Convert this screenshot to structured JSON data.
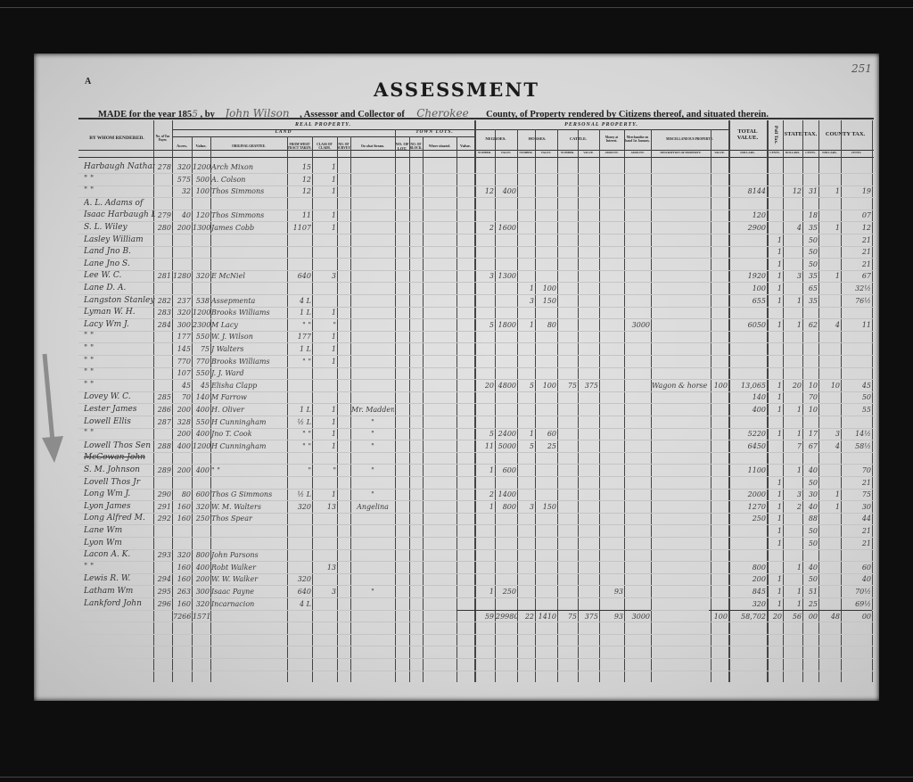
{
  "document": {
    "corner_letter": "A",
    "page_number": "251",
    "title": "ASSESSMENT",
    "made_for_prefix": "MADE for the year 185",
    "year_suffix": "5",
    "by_label": ", by",
    "assessor_name": "John Wilson",
    "assessor_label": ", Assessor and Collector of",
    "county_name": "Cherokee",
    "county_label": "County, of Property rendered by Citizens thereof, and situated therein."
  },
  "header": {
    "groups": {
      "real_property": "REAL PROPERTY.",
      "land": "LAND",
      "town_lots": "TOWN LOTS.",
      "personal_property": "PERSONAL PROPERTY."
    },
    "columns": [
      {
        "key": "name",
        "label": "BY WHOM RENDERED."
      },
      {
        "key": "tax",
        "label": "No. of Tax Payer."
      },
      {
        "key": "acres",
        "label": "Acres."
      },
      {
        "key": "lvalue",
        "label": "Value."
      },
      {
        "key": "grantee",
        "label": "ORIGINAL GRANTEE."
      },
      {
        "key": "tract",
        "label": "FROM WHAT TRACT TAKEN."
      },
      {
        "key": "claim",
        "label": "CLASS OF CLAIM."
      },
      {
        "key": "survey",
        "label": "NO. OF SURVEY"
      },
      {
        "key": "stream",
        "label": "On what Stream."
      },
      {
        "key": "lot",
        "label": "NO. OF LOT."
      },
      {
        "key": "block",
        "label": "NO. OF BLOCK."
      },
      {
        "key": "situated",
        "label": "Where situated."
      },
      {
        "key": "tvalue",
        "label": "Value."
      },
      {
        "key": "negroes",
        "label": "NEGROES.",
        "sub": [
          "NUMBER.",
          "VALUE."
        ]
      },
      {
        "key": "horses",
        "label": "HORSES.",
        "sub": [
          "NUMBER.",
          "VALUE."
        ]
      },
      {
        "key": "cattle",
        "label": "CATTLE.",
        "sub": [
          "NUMBER.",
          "VALUE."
        ]
      },
      {
        "key": "money",
        "label": "Money at Interest.",
        "sub": [
          "AMOUNT."
        ]
      },
      {
        "key": "merch",
        "label": "Merchandise on hand 1st January.",
        "sub": [
          "AMOUNT."
        ]
      },
      {
        "key": "misc",
        "label": "MISCELLANEOUS PROPERTY.",
        "sub": [
          "DESCRIPTION OF PROPERTY.",
          "VALUE."
        ]
      },
      {
        "key": "total",
        "label": "TOTAL VALUE.",
        "sub": [
          "DOLLARS."
        ]
      },
      {
        "key": "poll",
        "label": "Poll Tax.",
        "sub": [
          "CENTS."
        ]
      },
      {
        "key": "state",
        "label": "STATE TAX.",
        "sub": [
          "DOLLARS.",
          "CENTS."
        ]
      },
      {
        "key": "county",
        "label": "COUNTY TAX.",
        "sub": [
          "DOLLARS.",
          "CENTS."
        ]
      }
    ]
  },
  "rows": [
    {
      "name": "Harbaugh Nathan",
      "tax": "278",
      "acres": "320",
      "lvalue": "1200",
      "grantee": "Arch Mixon",
      "tract": "15",
      "claim": "1"
    },
    {
      "name": "\"      \"",
      "acres": "575",
      "lvalue": "500",
      "grantee": "A. Colson",
      "tract": "12",
      "claim": "1"
    },
    {
      "name": "\"      \"",
      "acres": "32",
      "lvalue": "100",
      "grantee": "Thos Simmons",
      "tract": "12",
      "claim": "1",
      "neg_n": "12",
      "neg_v": "400",
      "total": "8144",
      "st_d": "12",
      "st_c": "31",
      "co_d": "1",
      "co_c": "19"
    },
    {
      "name": "A. L. Adams of"
    },
    {
      "name": "Isaac Harbaugh Ley",
      "tax": "279",
      "acres": "40",
      "lvalue": "120",
      "grantee": "Thos Simmons",
      "tract": "11",
      "claim": "1",
      "total": "120",
      "st_c": "18",
      "co_c": "07"
    },
    {
      "name": "S. L. Wiley",
      "tax": "280",
      "acres": "200",
      "lvalue": "1300",
      "grantee": "James Cobb",
      "tract": "1107",
      "claim": "1",
      "neg_n": "2",
      "neg_v": "1600",
      "total": "2900",
      "st_d": "4",
      "st_c": "35",
      "co_d": "1",
      "co_c": "12"
    },
    {
      "name": "Lasley William",
      "poll": "1",
      "st_c": "50",
      "co_c": "21"
    },
    {
      "name": "Land Jno B.",
      "poll": "1",
      "st_c": "50",
      "co_c": "21"
    },
    {
      "name": "Lane Jno S.",
      "poll": "1",
      "st_c": "50",
      "co_c": "21"
    },
    {
      "name": "Lee W. C.",
      "tax": "281",
      "acres": "1280",
      "lvalue": "320",
      "grantee": "E McNiel",
      "tract": "640",
      "claim": "3",
      "neg_n": "3",
      "neg_v": "1300",
      "total": "1920",
      "poll": "1",
      "st_d": "3",
      "st_c": "35",
      "co_d": "1",
      "co_c": "67"
    },
    {
      "name": "Lane D. A.",
      "hor_n": "1",
      "hor_v": "100",
      "total": "100",
      "poll": "1",
      "st_c": "65",
      "co_c": "32½"
    },
    {
      "name": "Langston Stanley",
      "tax": "282",
      "acres": "237",
      "lvalue": "538",
      "grantee": "Assepmenta",
      "tract": "4 L",
      "hor_n": "3",
      "hor_v": "150",
      "total": "655",
      "poll": "1",
      "st_d": "1",
      "st_c": "35",
      "co_c": "76½"
    },
    {
      "name": "Lyman W. H.",
      "tax": "283",
      "acres": "320",
      "lvalue": "1200",
      "grantee": "Brooks Williams",
      "tract": "1 L",
      "claim": "1"
    },
    {
      "name": "Lacy Wm J.",
      "tax": "284",
      "acres": "300",
      "lvalue": "2300",
      "grantee": "M Lacy",
      "tract": "\"  \"",
      "claim": "\"",
      "neg_n": "5",
      "neg_v": "1800",
      "hor_n": "1",
      "hor_v": "80",
      "merch": "3000",
      "total": "6050",
      "poll": "1",
      "st_d": "1",
      "st_c": "62",
      "co_d": "4",
      "co_c": "11"
    },
    {
      "name": "\"      \"",
      "acres": "177",
      "lvalue": "550",
      "grantee": "W. J. Wilson",
      "tract": "177",
      "claim": "1"
    },
    {
      "name": "\"      \"",
      "acres": "145",
      "lvalue": "75",
      "grantee": "J Walters",
      "tract": "1 L",
      "claim": "1"
    },
    {
      "name": "\"      \"",
      "acres": "770",
      "lvalue": "770",
      "grantee": "Brooks Williams",
      "tract": "\"  \"",
      "claim": "1"
    },
    {
      "name": "\"      \"",
      "acres": "107",
      "lvalue": "550",
      "grantee": "J. J. Ward"
    },
    {
      "name": "\"      \"",
      "acres": "45",
      "lvalue": "45",
      "grantee": "Elisha Clapp",
      "neg_n": "20",
      "neg_v": "4800",
      "hor_n": "5",
      "hor_v": "100",
      "cat_n": "75",
      "cat_v": "375",
      "misc_d": "Wagon & horse",
      "misc_v": "100",
      "total": "13,065",
      "poll": "1",
      "st_d": "20",
      "st_c": "10",
      "co_d": "10",
      "co_c": "45"
    },
    {
      "name": "Lovey W. C.",
      "tax": "285",
      "acres": "70",
      "lvalue": "140",
      "grantee": "M Farrow",
      "total": "140",
      "poll": "1",
      "st_c": "70",
      "co_c": "50"
    },
    {
      "name": "Lester James",
      "tax": "286",
      "acres": "200",
      "lvalue": "400",
      "grantee": "H. Oliver",
      "tract": "1 L",
      "claim": "1",
      "stream": "Mr. Madden",
      "total": "400",
      "poll": "1",
      "st_d": "1",
      "st_c": "10",
      "co_c": "55"
    },
    {
      "name": "Lowell Ellis",
      "tax": "287",
      "acres": "328",
      "lvalue": "550",
      "grantee": "H Cunningham",
      "tract": "½ L",
      "claim": "1",
      "stream": "\""
    },
    {
      "name": "\"      \"",
      "acres": "200",
      "lvalue": "400",
      "grantee": "Jno T. Cook",
      "tract": "\"  \"",
      "claim": "1",
      "stream": "\"",
      "neg_n": "5",
      "neg_v": "2400",
      "hor_n": "1",
      "hor_v": "60",
      "total": "5220",
      "poll": "1",
      "st_d": "1",
      "st_c": "17",
      "co_d": "3",
      "co_c": "14½"
    },
    {
      "name": "Lowell Thos Sen",
      "tax": "288",
      "acres": "400",
      "lvalue": "1200",
      "grantee": "H Cunningham",
      "tract": "\"  \"",
      "claim": "1",
      "stream": "\"",
      "neg_n": "11",
      "neg_v": "5000",
      "hor_n": "5",
      "hor_v": "25",
      "total": "6450",
      "st_d": "7",
      "st_c": "67",
      "co_d": "4",
      "co_c": "58½"
    },
    {
      "name": "McCowan John",
      "strike": true
    },
    {
      "name": "S. M. Johnson",
      "tax": "289",
      "acres": "200",
      "lvalue": "400",
      "grantee": "\"    \"",
      "tract": "\"",
      "claim": "\"",
      "stream": "\"",
      "neg_n": "1",
      "neg_v": "600",
      "total": "1100",
      "st_d": "1",
      "st_c": "40",
      "co_c": "70"
    },
    {
      "name": "Lovell Thos Jr",
      "poll": "1",
      "st_c": "50",
      "co_c": "21"
    },
    {
      "name": "Long Wm J.",
      "tax": "290",
      "acres": "80",
      "lvalue": "600",
      "grantee": "Thos G Simmons",
      "tract": "½ L",
      "claim": "1",
      "stream": "\"",
      "neg_n": "2",
      "neg_v": "1400",
      "total": "2000",
      "poll": "1",
      "st_d": "3",
      "st_c": "30",
      "co_d": "1",
      "co_c": "75"
    },
    {
      "name": "Lyon James",
      "tax": "291",
      "acres": "160",
      "lvalue": "320",
      "grantee": "W. M. Walters",
      "tract": "320",
      "claim": "13",
      "stream": "Angelina",
      "neg_n": "1",
      "neg_v": "800",
      "hor_n": "3",
      "hor_v": "150",
      "total": "1270",
      "poll": "1",
      "st_d": "2",
      "st_c": "40",
      "co_d": "1",
      "co_c": "30"
    },
    {
      "name": "Long Alfred M.",
      "tax": "292",
      "acres": "160",
      "lvalue": "250",
      "grantee": "Thos Spear",
      "total": "250",
      "poll": "1",
      "st_c": "88",
      "co_c": "44"
    },
    {
      "name": "Lane Wm",
      "poll": "1",
      "st_c": "50",
      "co_c": "21"
    },
    {
      "name": "Lyon Wm",
      "poll": "1",
      "st_c": "50",
      "co_c": "21"
    },
    {
      "name": "Lacon A. K.",
      "tax": "293",
      "acres": "320",
      "lvalue": "800",
      "grantee": "John Parsons"
    },
    {
      "name": "\"      \"",
      "acres": "160",
      "lvalue": "400",
      "grantee": "Robt Walker",
      "claim": "13",
      "total": "800",
      "st_d": "1",
      "st_c": "40",
      "co_c": "60"
    },
    {
      "name": "Lewis R. W.",
      "tax": "294",
      "acres": "160",
      "lvalue": "200",
      "grantee": "W. W. Walker",
      "tract": "320",
      "total": "200",
      "poll": "1",
      "st_c": "50",
      "co_c": "40"
    },
    {
      "name": "Latham Wm",
      "tax": "295",
      "acres": "263",
      "lvalue": "300",
      "grantee": "Isaac Payne",
      "tract": "640",
      "claim": "3",
      "stream": "\"",
      "neg_n": "1",
      "neg_v": "250",
      "money": "93",
      "total": "845",
      "poll": "1",
      "st_d": "1",
      "st_c": "51",
      "co_c": "70½"
    },
    {
      "name": "Lankford John",
      "tax": "296",
      "acres": "160",
      "lvalue": "320",
      "grantee": "Incarnacion",
      "tract": "4 L",
      "total": "320",
      "poll": "1",
      "st_d": "1",
      "st_c": "25",
      "co_c": "69½"
    }
  ],
  "totals": {
    "acres": "7266",
    "lvalue": "15714",
    "neg_n": "59",
    "neg_v": "29980",
    "hor_n": "22",
    "hor_v": "1410",
    "cat_n": "75",
    "cat_v": "375",
    "money": "93",
    "merch": "3000",
    "misc_v": "100",
    "total": "58,702",
    "poll": "20",
    "st_d": "56",
    "st_c": "00",
    "co_d": "48",
    "co_c": "00"
  },
  "colors": {
    "paper": "#d9d9d9",
    "ink": "#3a3a3a",
    "arrow": "#8c8c8c",
    "background": "#0e0e0e"
  }
}
